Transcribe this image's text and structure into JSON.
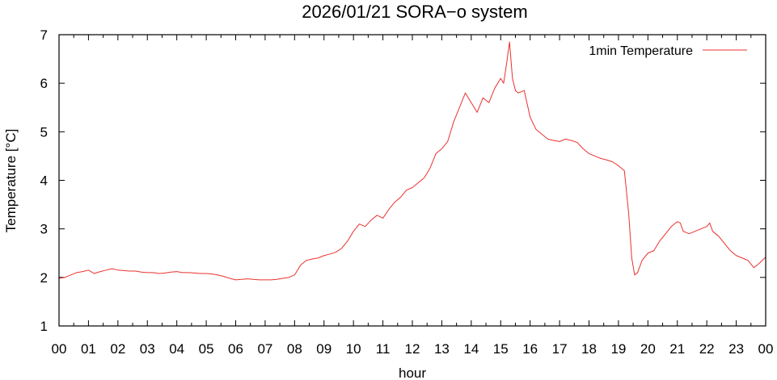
{
  "chart_data": {
    "type": "line",
    "title": "2026/01/21 SORA−o system",
    "xlabel": "hour",
    "ylabel": "Temperature [°C]",
    "xlim": [
      0,
      24
    ],
    "ylim": [
      1,
      7
    ],
    "x_tick_labels": [
      "00",
      "01",
      "02",
      "03",
      "04",
      "05",
      "06",
      "07",
      "08",
      "09",
      "10",
      "11",
      "12",
      "13",
      "14",
      "15",
      "16",
      "17",
      "18",
      "19",
      "20",
      "21",
      "22",
      "23",
      "00"
    ],
    "y_tick_labels": [
      "1",
      "2",
      "3",
      "4",
      "5",
      "6",
      "7"
    ],
    "grid": false,
    "legend_position": "top-right",
    "colors": {
      "series": "#e8322e",
      "axes": "#000000"
    },
    "series": [
      {
        "name": "1min Temperature",
        "x": [
          0,
          0.2,
          0.4,
          0.6,
          0.8,
          1.0,
          1.2,
          1.4,
          1.6,
          1.8,
          2.0,
          2.2,
          2.4,
          2.6,
          2.8,
          3.0,
          3.2,
          3.4,
          3.6,
          3.8,
          4.0,
          4.2,
          4.4,
          4.6,
          4.8,
          5.0,
          5.2,
          5.4,
          5.6,
          5.8,
          6.0,
          6.2,
          6.4,
          6.6,
          6.8,
          7.0,
          7.2,
          7.4,
          7.6,
          7.8,
          8.0,
          8.2,
          8.4,
          8.6,
          8.8,
          9.0,
          9.2,
          9.4,
          9.6,
          9.8,
          10.0,
          10.2,
          10.4,
          10.6,
          10.8,
          11.0,
          11.2,
          11.4,
          11.6,
          11.8,
          12.0,
          12.2,
          12.4,
          12.6,
          12.8,
          13.0,
          13.2,
          13.4,
          13.6,
          13.8,
          14.0,
          14.2,
          14.4,
          14.6,
          14.8,
          15.0,
          15.1,
          15.2,
          15.3,
          15.4,
          15.5,
          15.6,
          15.8,
          16.0,
          16.2,
          16.4,
          16.6,
          16.8,
          17.0,
          17.2,
          17.4,
          17.6,
          17.8,
          18.0,
          18.2,
          18.4,
          18.6,
          18.8,
          19.0,
          19.2,
          19.35,
          19.45,
          19.55,
          19.65,
          19.8,
          20.0,
          20.2,
          20.4,
          20.6,
          20.8,
          21.0,
          21.1,
          21.2,
          21.4,
          21.6,
          21.8,
          22.0,
          22.1,
          22.2,
          22.4,
          22.6,
          22.8,
          23.0,
          23.2,
          23.4,
          23.6,
          23.8,
          24.0
        ],
        "values": [
          1.98,
          2.0,
          2.05,
          2.1,
          2.12,
          2.15,
          2.08,
          2.12,
          2.15,
          2.18,
          2.15,
          2.14,
          2.13,
          2.13,
          2.11,
          2.1,
          2.1,
          2.08,
          2.09,
          2.11,
          2.12,
          2.1,
          2.1,
          2.09,
          2.08,
          2.08,
          2.07,
          2.05,
          2.02,
          1.98,
          1.95,
          1.96,
          1.97,
          1.96,
          1.95,
          1.95,
          1.95,
          1.96,
          1.98,
          2.0,
          2.05,
          2.25,
          2.35,
          2.38,
          2.4,
          2.45,
          2.48,
          2.52,
          2.6,
          2.75,
          2.95,
          3.1,
          3.05,
          3.18,
          3.28,
          3.22,
          3.4,
          3.55,
          3.65,
          3.8,
          3.85,
          3.95,
          4.05,
          4.25,
          4.55,
          4.65,
          4.8,
          5.2,
          5.5,
          5.8,
          5.6,
          5.4,
          5.7,
          5.6,
          5.9,
          6.1,
          6.0,
          6.4,
          6.85,
          6.1,
          5.85,
          5.8,
          5.85,
          5.3,
          5.05,
          4.95,
          4.85,
          4.82,
          4.8,
          4.85,
          4.82,
          4.78,
          4.65,
          4.55,
          4.5,
          4.45,
          4.42,
          4.38,
          4.3,
          4.2,
          3.3,
          2.4,
          2.05,
          2.1,
          2.35,
          2.5,
          2.55,
          2.75,
          2.9,
          3.05,
          3.15,
          3.12,
          2.95,
          2.9,
          2.95,
          3.0,
          3.05,
          3.12,
          2.95,
          2.85,
          2.7,
          2.55,
          2.45,
          2.4,
          2.35,
          2.2,
          2.3,
          2.42
        ]
      }
    ]
  }
}
